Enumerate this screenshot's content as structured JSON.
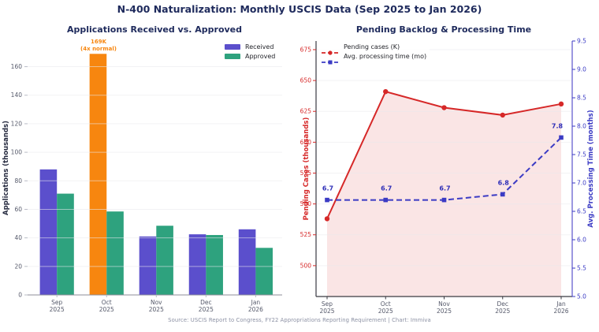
{
  "page": {
    "title": "N-400 Naturalization: Monthly USCIS Data (Sep 2025 to Jan 2026)",
    "footer_source": "Source: USCIS Report to Congress, FY22 Appropriations Reporting Requirement  |  Chart: Immiva"
  },
  "colors": {
    "title_navy": "#1e2a5c",
    "received_purple": "#5b4fcc",
    "approved_green": "#2ea27e",
    "highlight_orange": "#f7860f",
    "pending_red": "#d62828",
    "processing_blue": "#3b3bc4",
    "tick_gray": "#55596a",
    "pending_fill": "rgba(214,40,40,0.12)"
  },
  "chart_data": [
    {
      "type": "bar",
      "title": "Applications Received vs. Approved",
      "ylabel": "Applications (thousands)",
      "categories": [
        "Sep 2025",
        "Oct 2025",
        "Nov 2025",
        "Dec 2025",
        "Jan 2026"
      ],
      "series": [
        {
          "name": "Received",
          "color": "#5b4fcc",
          "values": [
            88,
            169,
            41,
            42.5,
            46
          ]
        },
        {
          "name": "Approved",
          "color": "#2ea27e",
          "values": [
            71,
            58.5,
            48.5,
            42,
            33
          ]
        }
      ],
      "highlight": {
        "series_index": 0,
        "category_index": 1,
        "color": "#f7860f",
        "annotation": [
          "169K",
          "(4x normal)"
        ]
      },
      "yticks": [
        0,
        20,
        40,
        60,
        80,
        100,
        120,
        140,
        160
      ],
      "ylim": [
        0,
        178
      ],
      "grid": true,
      "legend_position": "upper right"
    },
    {
      "type": "line",
      "title": "Pending Backlog & Processing Time",
      "categories": [
        "Sep 2025",
        "Oct 2025",
        "Nov 2025",
        "Dec 2025",
        "Jan 2026"
      ],
      "series": [
        {
          "name": "Pending cases (K)",
          "axis": "left",
          "color": "#d62828",
          "style": "solid",
          "marker": "circle",
          "fill": true,
          "values": [
            538,
            641,
            628,
            622,
            631
          ]
        },
        {
          "name": "Avg. processing time (mo)",
          "axis": "right",
          "color": "#3b3bc4",
          "style": "dashed",
          "marker": "square",
          "values": [
            6.7,
            6.7,
            6.7,
            6.8,
            7.8
          ],
          "point_labels": [
            "6.7",
            "6.7",
            "6.7",
            "6.8",
            "7.8"
          ]
        }
      ],
      "left_axis": {
        "label": "Pending Cases (thousands)",
        "color": "#d62828",
        "ticks": [
          500,
          525,
          550,
          575,
          600,
          625,
          650,
          675
        ],
        "lim": [
          475,
          682
        ]
      },
      "right_axis": {
        "label": "Avg. Processing Time (months)",
        "color": "#3b3bc4",
        "ticks": [
          5.0,
          5.5,
          6.0,
          6.5,
          7.0,
          7.5,
          8.0,
          8.5,
          9.0,
          9.5
        ],
        "lim": [
          5.0,
          9.5
        ]
      },
      "grid": true,
      "legend_position": "upper left"
    }
  ]
}
